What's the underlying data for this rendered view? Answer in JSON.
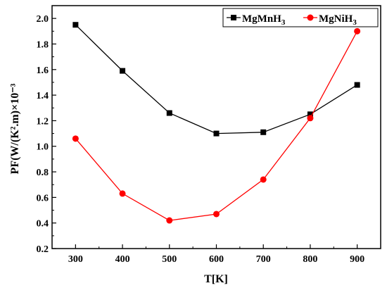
{
  "chart_data": {
    "type": "line",
    "title": "",
    "xlabel": "T[K]",
    "ylabel": "PF(W/(K².m)×10⁻³",
    "xlim": [
      250,
      950
    ],
    "ylim": [
      0.2,
      2.1
    ],
    "x": [
      300,
      400,
      500,
      600,
      700,
      800,
      900
    ],
    "x_ticks": [
      "300",
      "400",
      "500",
      "600",
      "700",
      "800",
      "900"
    ],
    "y_ticks": [
      "0.2",
      "0.4",
      "0.6",
      "0.8",
      "1.0",
      "1.2",
      "1.4",
      "1.6",
      "1.8",
      "2.0"
    ],
    "grid": false,
    "legend_position": "top-right",
    "series": [
      {
        "name": "MgMnH3",
        "legend_base": "MgMnH",
        "legend_sub": "3",
        "color": "#000000",
        "marker": "square",
        "values": [
          1.95,
          1.59,
          1.26,
          1.1,
          1.11,
          1.25,
          1.48
        ]
      },
      {
        "name": "MgNiH3",
        "legend_base": "MgNiH",
        "legend_sub": "3",
        "color": "#ff0000",
        "marker": "circle",
        "values": [
          1.06,
          0.63,
          0.42,
          0.47,
          0.74,
          1.22,
          1.9
        ]
      }
    ]
  }
}
